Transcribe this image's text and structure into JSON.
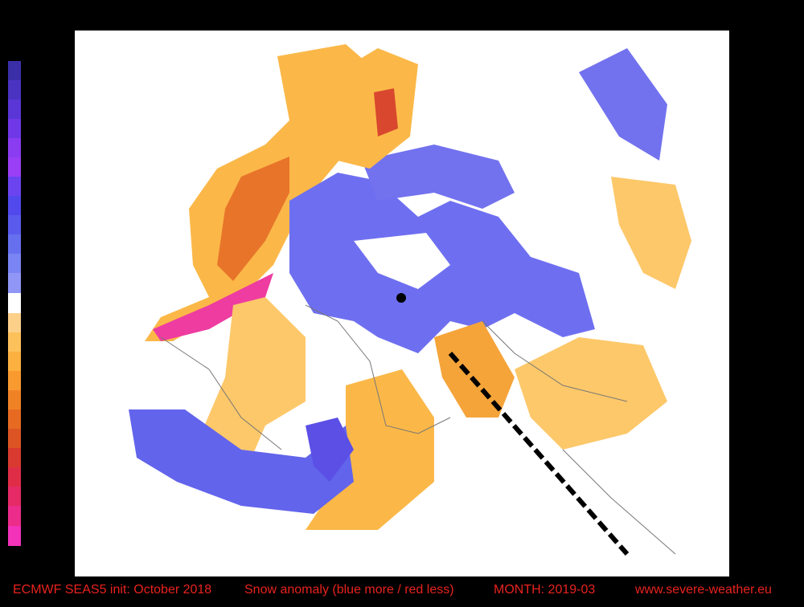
{
  "footer": {
    "init": "ECMWF SEAS5 init: October 2018",
    "description": "Snow anomaly (blue more / red less)",
    "month": "MONTH: 2019-03",
    "website": "www.severe-weather.eu"
  }
}
